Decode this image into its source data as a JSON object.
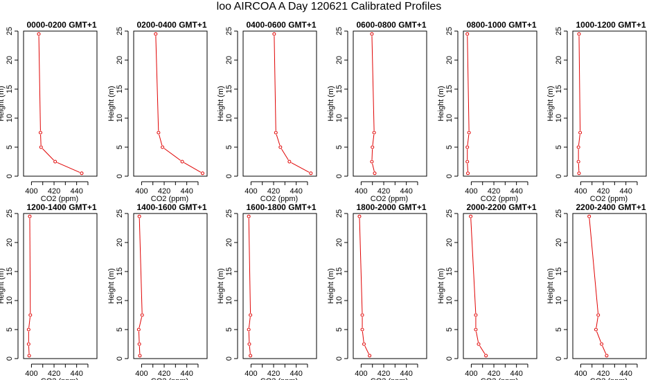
{
  "figure": {
    "title": "loo AIRCOA A  Day 120621  Calibrated Profiles"
  },
  "chart_data": {
    "type": "scatter",
    "layout": "2 rows x 6 columns",
    "line_color": "#e00000",
    "marker": "open-circle",
    "xlabel": "CO2 (ppm)",
    "ylabel": "Height (m)",
    "xlim": [
      393,
      458
    ],
    "ylim": [
      0,
      25
    ],
    "xticks": [
      "400",
      "420",
      "440"
    ],
    "yticks": [
      "0",
      "5",
      "10",
      "15",
      "20",
      "25"
    ],
    "grid": false,
    "panels": [
      {
        "title": "0000-0200 GMT+1",
        "series": [
          {
            "x": [
              406.5,
              408,
              408.5,
              421,
              444.5
            ],
            "y": [
              24.5,
              7.5,
              5,
              2.5,
              0.5
            ]
          }
        ]
      },
      {
        "title": "0200-0400 GMT+1",
        "series": [
          {
            "x": [
              412.5,
              415,
              418.5,
              436,
              454
            ],
            "y": [
              24.5,
              7.5,
              5,
              2.5,
              0.5
            ]
          }
        ]
      },
      {
        "title": "0400-0600 GMT+1",
        "series": [
          {
            "x": [
              420.5,
              422,
              426,
              434,
              453
            ],
            "y": [
              24.5,
              7.5,
              5,
              2.5,
              0.5
            ]
          }
        ]
      },
      {
        "title": "0600-0800 GMT+1",
        "series": [
          {
            "x": [
              409.5,
              411.5,
              410,
              409.5,
              412
            ],
            "y": [
              24.5,
              7.5,
              5,
              2.5,
              0.5
            ]
          }
        ]
      },
      {
        "title": "0800-1000 GMT+1",
        "series": [
          {
            "x": [
              396.5,
              398,
              396.5,
              396.5,
              397
            ],
            "y": [
              24.5,
              7.5,
              5,
              2.5,
              0.5
            ]
          }
        ]
      },
      {
        "title": "1000-1200 GMT+1",
        "series": [
          {
            "x": [
              398.5,
              399.5,
              398,
              398,
              398.5
            ],
            "y": [
              24.5,
              7.5,
              5,
              2.5,
              0.5
            ]
          }
        ]
      },
      {
        "title": "1200-1400 GMT+1",
        "series": [
          {
            "x": [
              398.5,
              399,
              397.5,
              397.5,
              398
            ],
            "y": [
              24.5,
              7.5,
              5,
              2.5,
              0.5
            ]
          }
        ]
      },
      {
        "title": "1400-1600 GMT+1",
        "series": [
          {
            "x": [
              398,
              400.5,
              397.5,
              398,
              398.5
            ],
            "y": [
              24.5,
              7.5,
              5,
              2.5,
              0.5
            ]
          }
        ]
      },
      {
        "title": "1600-1800 GMT+1",
        "series": [
          {
            "x": [
              398,
              399.5,
              398,
              398.5,
              399.5
            ],
            "y": [
              24.5,
              7.5,
              5,
              2.5,
              0.5
            ]
          }
        ]
      },
      {
        "title": "1800-2000 GMT+1",
        "series": [
          {
            "x": [
              398.5,
              401,
              401,
              402.5,
              407.5
            ],
            "y": [
              24.5,
              7.5,
              5,
              2.5,
              0.5
            ]
          }
        ]
      },
      {
        "title": "2000-2200 GMT+1",
        "series": [
          {
            "x": [
              399.5,
              404,
              404,
              406.5,
              413
            ],
            "y": [
              24.5,
              7.5,
              5,
              2.5,
              0.5
            ]
          }
        ]
      },
      {
        "title": "2200-2400 GMT+1",
        "series": [
          {
            "x": [
              407.5,
              415.5,
              413.5,
              418.5,
              423
            ],
            "y": [
              24.5,
              7.5,
              5,
              2.5,
              0.5
            ]
          }
        ]
      }
    ]
  }
}
